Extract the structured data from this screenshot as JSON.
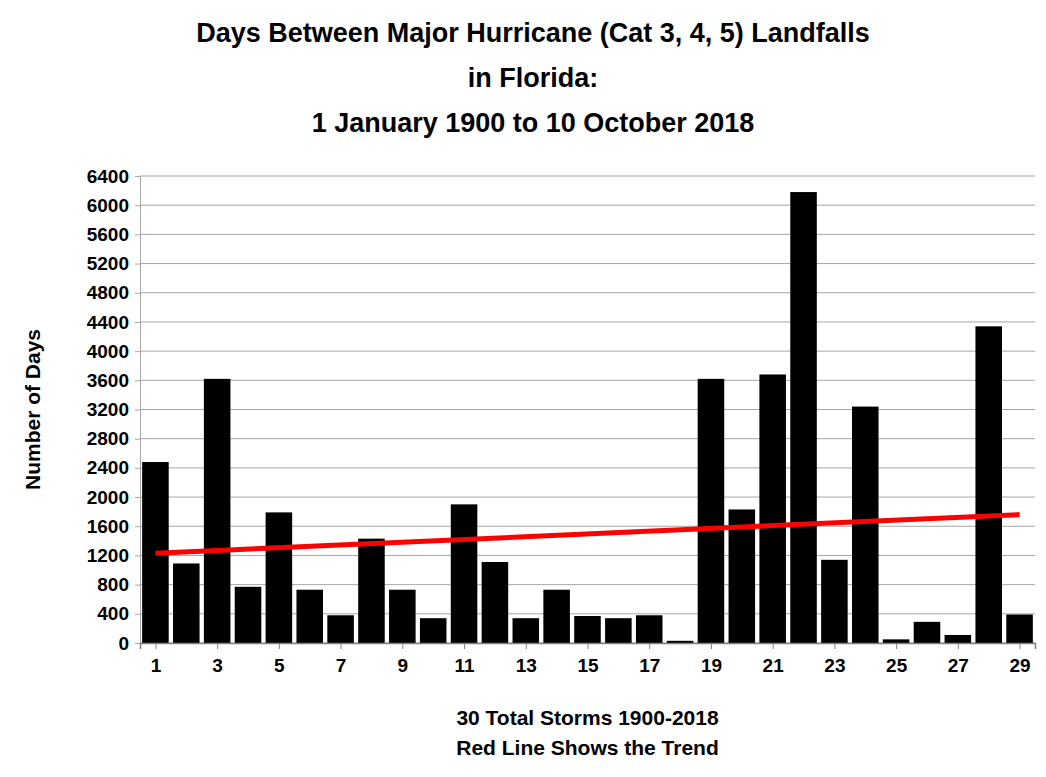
{
  "chart_data": {
    "type": "bar",
    "title": [
      "Days Between Major Hurricane (Cat 3, 4, 5) Landfalls",
      "in Florida:",
      "1 January 1900 to 10 October 2018"
    ],
    "xlabel": [
      "30 Total Storms 1900-2018",
      "Red Line Shows the Trend"
    ],
    "ylabel": "Number of Days",
    "x": [
      1,
      2,
      3,
      4,
      5,
      6,
      7,
      8,
      9,
      10,
      11,
      12,
      13,
      14,
      15,
      16,
      17,
      18,
      19,
      20,
      21,
      22,
      23,
      24,
      25,
      26,
      27,
      28,
      29
    ],
    "values": [
      2480,
      1090,
      3620,
      770,
      1790,
      730,
      380,
      1430,
      730,
      340,
      1900,
      1110,
      340,
      730,
      370,
      340,
      380,
      30,
      3620,
      1830,
      3680,
      6180,
      1140,
      3240,
      50,
      290,
      110,
      4340,
      390
    ],
    "color": "#000000",
    "xlim": [
      0.5,
      29.5
    ],
    "xticks": [
      1,
      3,
      5,
      7,
      9,
      11,
      13,
      15,
      17,
      19,
      21,
      23,
      25,
      27,
      29
    ],
    "ylim": [
      0,
      6400
    ],
    "yticks": [
      0,
      400,
      800,
      1200,
      1600,
      2000,
      2400,
      2800,
      3200,
      3600,
      4000,
      4400,
      4800,
      5200,
      5600,
      6000,
      6400
    ],
    "grid": true,
    "trend": {
      "type": "line",
      "color": "#ff0000",
      "x": [
        1,
        29
      ],
      "values": [
        1230,
        1760
      ]
    }
  }
}
